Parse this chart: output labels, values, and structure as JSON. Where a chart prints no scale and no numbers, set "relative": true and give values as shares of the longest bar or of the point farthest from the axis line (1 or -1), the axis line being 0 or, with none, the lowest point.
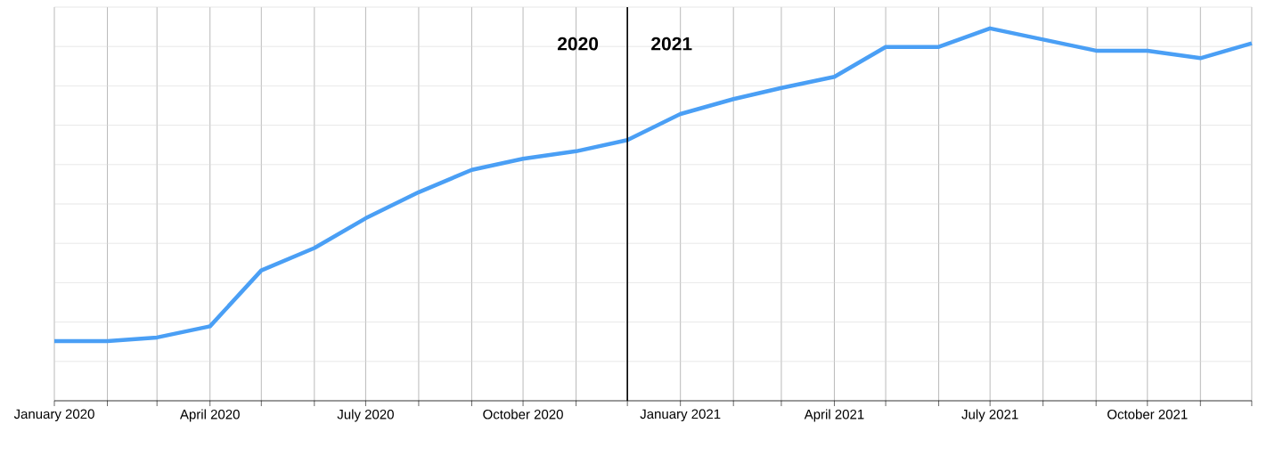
{
  "chart_data": {
    "type": "line",
    "relative": true,
    "grid": true,
    "x": [
      "2020-01",
      "2020-02",
      "2020-03",
      "2020-04",
      "2020-05",
      "2020-06",
      "2020-07",
      "2020-08",
      "2020-09",
      "2020-10",
      "2020-11",
      "2020-12",
      "2021-01",
      "2021-02",
      "2021-03",
      "2021-04",
      "2021-05",
      "2021-06",
      "2021-07",
      "2021-08",
      "2021-09",
      "2021-10",
      "2021-11",
      "2021-12"
    ],
    "series": [
      {
        "color": "#4a9ff5",
        "values": [
          0.16,
          0.16,
          0.17,
          0.2,
          0.35,
          0.41,
          0.49,
          0.56,
          0.62,
          0.65,
          0.67,
          0.7,
          0.77,
          0.81,
          0.84,
          0.87,
          0.95,
          0.95,
          1,
          0.97,
          0.94,
          0.94,
          0.92,
          0.96
        ]
      }
    ],
    "xlim": [
      "2020-01",
      "2021-12"
    ],
    "xticks": [
      {
        "value": "2020-01",
        "label": "January 2020"
      },
      {
        "value": "2020-02",
        "label": null
      },
      {
        "value": "2020-03",
        "label": null
      },
      {
        "value": "2020-04",
        "label": "April 2020"
      },
      {
        "value": "2020-05",
        "label": null
      },
      {
        "value": "2020-06",
        "label": null
      },
      {
        "value": "2020-07",
        "label": "July 2020"
      },
      {
        "value": "2020-08",
        "label": null
      },
      {
        "value": "2020-09",
        "label": null
      },
      {
        "value": "2020-10",
        "label": "October 2020"
      },
      {
        "value": "2020-11",
        "label": null
      },
      {
        "value": "2020-12",
        "label": null
      },
      {
        "value": "2021-01",
        "label": "January 2021"
      },
      {
        "value": "2021-02",
        "label": null
      },
      {
        "value": "2021-03",
        "label": null
      },
      {
        "value": "2021-04",
        "label": "April 2021"
      },
      {
        "value": "2021-05",
        "label": null
      },
      {
        "value": "2021-06",
        "label": null
      },
      {
        "value": "2021-07",
        "label": "July 2021"
      },
      {
        "value": "2021-08",
        "label": null
      },
      {
        "value": "2021-09",
        "label": null
      },
      {
        "value": "2021-10",
        "label": "October 2021"
      },
      {
        "value": "2021-11",
        "label": null
      },
      {
        "value": "2021-12",
        "label": null
      }
    ],
    "ref_lines": [
      {
        "axis": "x",
        "value": "2020-12",
        "color": "#000000"
      }
    ],
    "annotations": [
      "2020",
      "2021"
    ]
  }
}
